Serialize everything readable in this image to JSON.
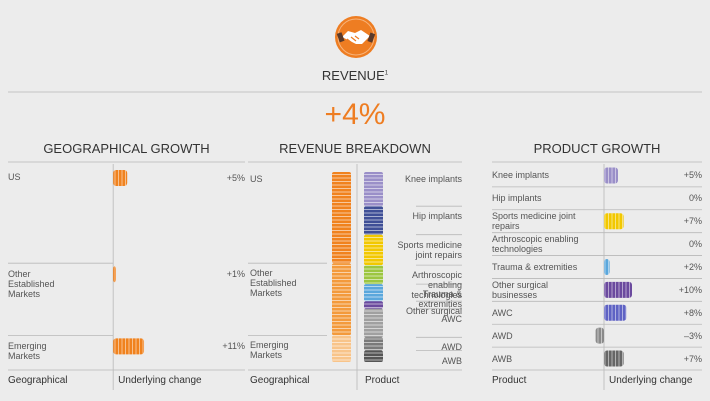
{
  "header": {
    "title": "REVENUE",
    "title_note": "1",
    "headline": "+4%"
  },
  "chart_data": [
    {
      "type": "bar",
      "orientation": "horizontal",
      "title": "GEOGRAPHICAL GROWTH",
      "categories": [
        "US",
        "Other Established Markets",
        "Emerging Markets"
      ],
      "values": [
        5,
        1,
        11
      ],
      "value_labels": [
        "+5%",
        "+1%",
        "+11%"
      ],
      "color": "#f0821e",
      "xlim": [
        -37.5,
        47
      ],
      "category_axis_label": "Geographical",
      "value_axis_label": "Underlying change"
    },
    {
      "type": "stacked-column",
      "title": "REVENUE BREAKDOWN",
      "categories": [
        "Geographical",
        "Product"
      ],
      "ylim": [
        0,
        100
      ],
      "series": [
        {
          "name": "US",
          "color": "#f0821e",
          "values": [
            48,
            null
          ]
        },
        {
          "name": "Other Established Markets",
          "color": "#f39a3c",
          "values": [
            38,
            null
          ]
        },
        {
          "name": "Emerging Markets",
          "color": "#f8c48a",
          "values": [
            14,
            null
          ]
        },
        {
          "name": "Knee implants",
          "color": "#9a8fc8",
          "values": [
            null,
            18
          ]
        },
        {
          "name": "Hip implants",
          "color": "#3f4f96",
          "values": [
            null,
            15
          ]
        },
        {
          "name": "Sports medicine joint repairs",
          "color": "#f2c800",
          "values": [
            null,
            16
          ]
        },
        {
          "name": "Arthroscopic enabling technologies",
          "color": "#9cc640",
          "values": [
            null,
            10
          ]
        },
        {
          "name": "Trauma & extremities",
          "color": "#5aa7dc",
          "values": [
            null,
            9
          ]
        },
        {
          "name": "Other surgical",
          "color": "#6b4a9e",
          "values": [
            null,
            4
          ]
        },
        {
          "name": "AWC",
          "color": "#a0a0a0",
          "values": [
            null,
            15
          ]
        },
        {
          "name": "AWD",
          "color": "#7a7a7a",
          "values": [
            null,
            7
          ]
        },
        {
          "name": "AWB",
          "color": "#555555",
          "values": [
            null,
            6
          ]
        }
      ]
    },
    {
      "type": "bar",
      "orientation": "horizontal",
      "title": "PRODUCT GROWTH",
      "categories": [
        "Knee implants",
        "Hip implants",
        "Sports medicine joint repairs",
        "Arthroscopic enabling technologies",
        "Trauma & extremities",
        "Other surgical businesses",
        "AWC",
        "AWD",
        "AWB"
      ],
      "values": [
        5,
        0,
        7,
        0,
        2,
        10,
        8,
        -3,
        7
      ],
      "value_labels": [
        "+5%",
        "0%",
        "+7%",
        "0%",
        "+2%",
        "+10%",
        "+8%",
        "–3%",
        "+7%"
      ],
      "colors": [
        "#9a8fc8",
        "#3f4f96",
        "#f2c800",
        "#9cc640",
        "#5aa7dc",
        "#6b4a9e",
        "#5e62c4",
        "#8a8a8a",
        "#666666"
      ],
      "xlim": [
        -40,
        35
      ],
      "category_axis_label": "Product",
      "value_axis_label": "Underlying change"
    }
  ]
}
